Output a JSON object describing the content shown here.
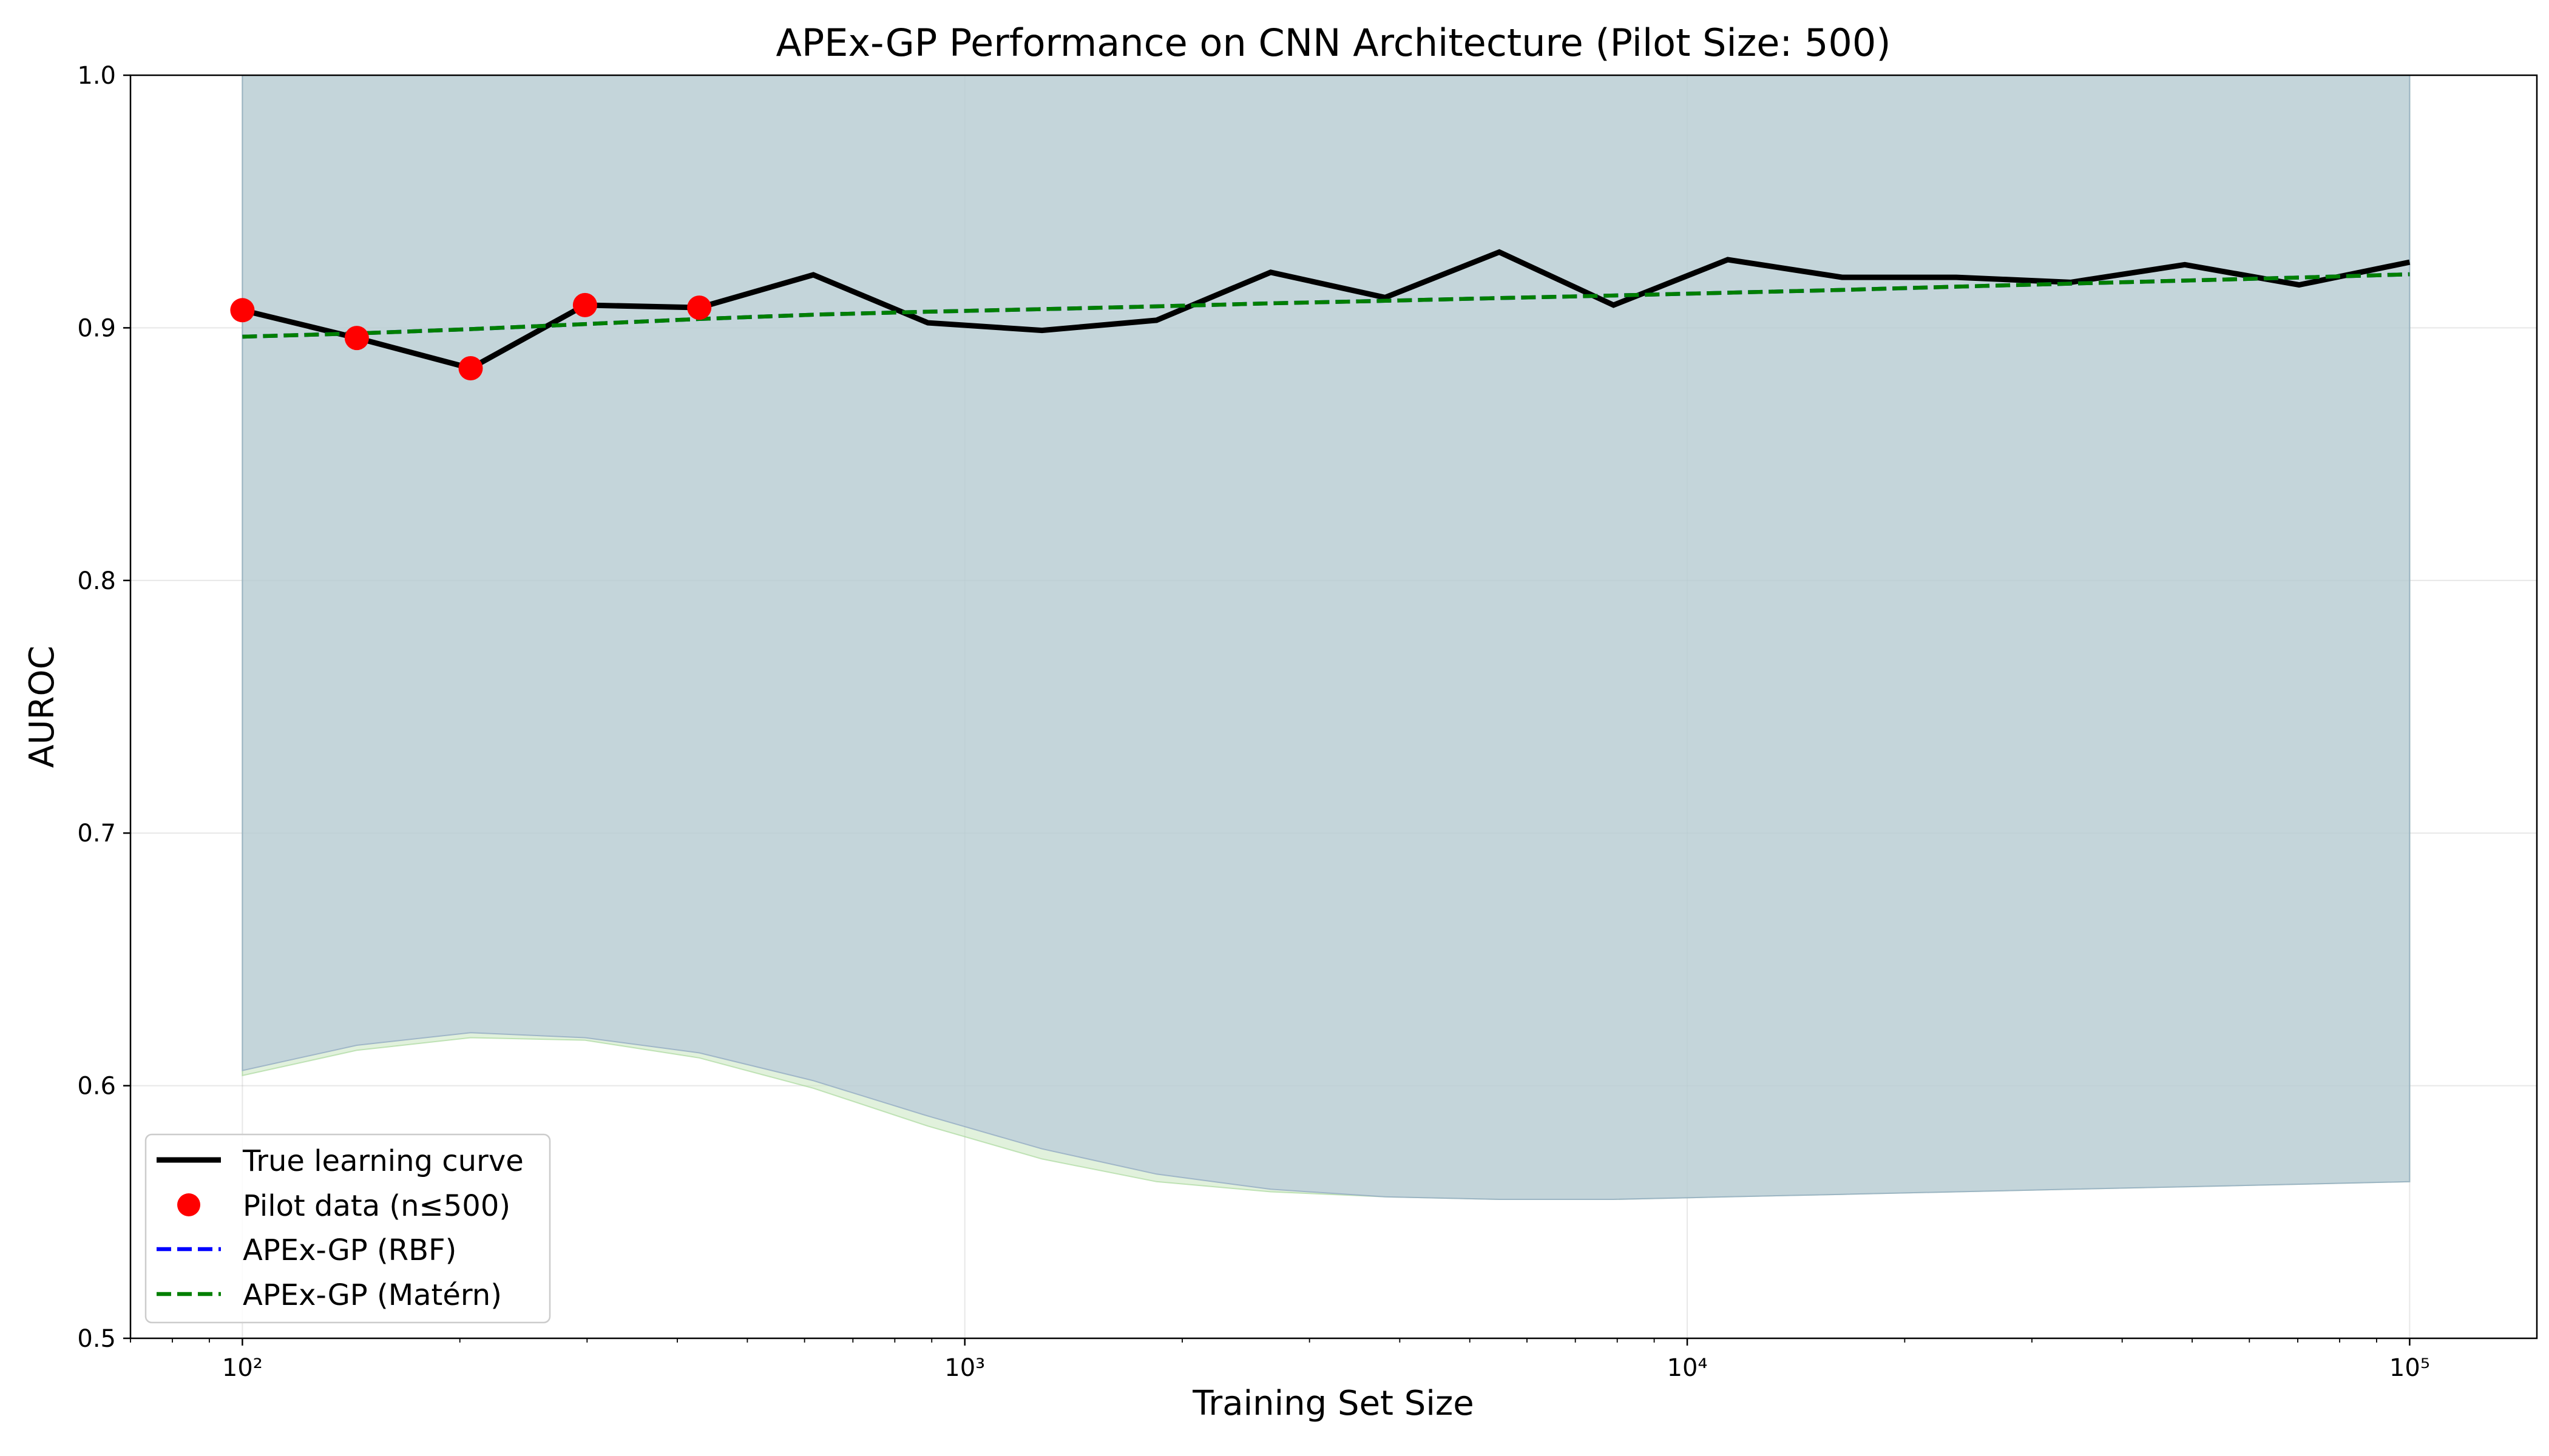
{
  "chart_data": {
    "type": "line",
    "title": "APEx-GP Performance on CNN Architecture (Pilot Size: 500)",
    "xlabel": "Training Set Size",
    "ylabel": "AUROC",
    "xscale": "log",
    "xlim": [
      70,
      150000
    ],
    "ylim": [
      0.5,
      1.0
    ],
    "x_ticks": [
      {
        "value": 100,
        "label": "10²"
      },
      {
        "value": 1000,
        "label": "10³"
      },
      {
        "value": 10000,
        "label": "10⁴"
      },
      {
        "value": 100000,
        "label": "10⁵"
      }
    ],
    "y_ticks": [
      {
        "value": 0.5,
        "label": "0.5"
      },
      {
        "value": 0.6,
        "label": "0.6"
      },
      {
        "value": 0.7,
        "label": "0.7"
      },
      {
        "value": 0.8,
        "label": "0.8"
      },
      {
        "value": 0.9,
        "label": "0.9"
      },
      {
        "value": 1.0,
        "label": "1.0"
      }
    ],
    "grid": true,
    "legend_position": "lower-left",
    "colors": {
      "true_curve": "#000000",
      "pilot": "#ff0000",
      "rbf": "#0000ff",
      "matern": "#007f00",
      "rbf_band": "#b3c6d9",
      "matern_band": "#c8e6c0"
    },
    "x": [
      100,
      144,
      207,
      298,
      429,
      617,
      889,
      1279,
      1842,
      2651,
      3817,
      5494,
      7906,
      11380,
      16380,
      23580,
      33930,
      48840,
      70300,
      100000
    ],
    "series": [
      {
        "name": "True learning curve",
        "style": "solid",
        "values": [
          0.907,
          0.896,
          0.884,
          0.909,
          0.908,
          0.921,
          0.902,
          0.899,
          0.903,
          0.922,
          0.912,
          0.93,
          0.909,
          0.927,
          0.92,
          0.92,
          0.918,
          0.925,
          0.917,
          0.926
        ]
      },
      {
        "name": "Pilot data (n≤500)",
        "style": "markers",
        "x": [
          100,
          144,
          207,
          298,
          429
        ],
        "values": [
          0.907,
          0.896,
          0.884,
          0.909,
          0.908
        ]
      },
      {
        "name": "APEx-GP (RBF)",
        "style": "dashed",
        "values": [
          0.8965,
          0.8978,
          0.8995,
          0.9015,
          0.9035,
          0.9052,
          0.9064,
          0.9074,
          0.9085,
          0.9097,
          0.9107,
          0.9118,
          0.9128,
          0.9139,
          0.915,
          0.9163,
          0.9175,
          0.9187,
          0.9199,
          0.9212
        ],
        "band_lower": [
          0.606,
          0.616,
          0.621,
          0.619,
          0.613,
          0.602,
          0.588,
          0.575,
          0.565,
          0.559,
          0.556,
          0.555,
          0.555,
          0.556,
          0.557,
          0.558,
          0.559,
          0.56,
          0.561,
          0.562
        ],
        "band_upper": [
          1.0,
          1.0,
          1.0,
          1.0,
          1.0,
          1.0,
          1.0,
          1.0,
          1.0,
          1.0,
          1.0,
          1.0,
          1.0,
          1.0,
          1.0,
          1.0,
          1.0,
          1.0,
          1.0,
          1.0
        ]
      },
      {
        "name": "APEx-GP (Matérn)",
        "style": "dashed",
        "values": [
          0.8965,
          0.8978,
          0.8995,
          0.9015,
          0.9035,
          0.9052,
          0.9064,
          0.9074,
          0.9085,
          0.9097,
          0.9107,
          0.9118,
          0.9128,
          0.9139,
          0.915,
          0.9163,
          0.9175,
          0.9187,
          0.9199,
          0.9212
        ],
        "band_lower": [
          0.604,
          0.614,
          0.619,
          0.618,
          0.611,
          0.599,
          0.584,
          0.571,
          0.562,
          0.558,
          0.556,
          0.555,
          0.555,
          0.556,
          0.557,
          0.558,
          0.559,
          0.56,
          0.561,
          0.562
        ],
        "band_upper": [
          1.0,
          1.0,
          1.0,
          1.0,
          1.0,
          1.0,
          1.0,
          1.0,
          1.0,
          1.0,
          1.0,
          1.0,
          1.0,
          1.0,
          1.0,
          1.0,
          1.0,
          1.0,
          1.0,
          1.0
        ]
      }
    ]
  }
}
